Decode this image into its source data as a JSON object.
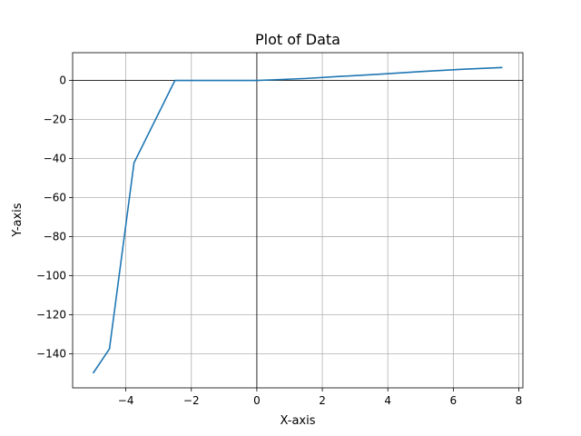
{
  "chart_data": {
    "type": "line",
    "title": "Plot of Data",
    "xlabel": "X-axis",
    "ylabel": "Y-axis",
    "xlim": [
      -5.625,
      8.125
    ],
    "ylim": [
      -157.5,
      14.2
    ],
    "xticks": [
      -4,
      -2,
      0,
      2,
      4,
      6,
      8
    ],
    "xtick_labels": [
      "−4",
      "−2",
      "0",
      "2",
      "4",
      "6",
      "8"
    ],
    "yticks": [
      0,
      -20,
      -40,
      -60,
      -80,
      -100,
      -120,
      -140
    ],
    "ytick_labels": [
      "0",
      "−20",
      "−40",
      "−60",
      "−80",
      "−100",
      "−120",
      "−140"
    ],
    "grid": true,
    "reference_lines": {
      "x": 0,
      "y": 0
    },
    "series": [
      {
        "color": "#1f77b4",
        "x": [
          -5.0,
          -4.5,
          -3.75,
          -2.5,
          0,
          0.5,
          1.5,
          2.5,
          3.75,
          5.0,
          6.25,
          7.5
        ],
        "y": [
          -150,
          -137.5,
          -42.2,
          0,
          0,
          0.3,
          1,
          2,
          3.2,
          4.5,
          5.7,
          6.6
        ]
      }
    ]
  }
}
